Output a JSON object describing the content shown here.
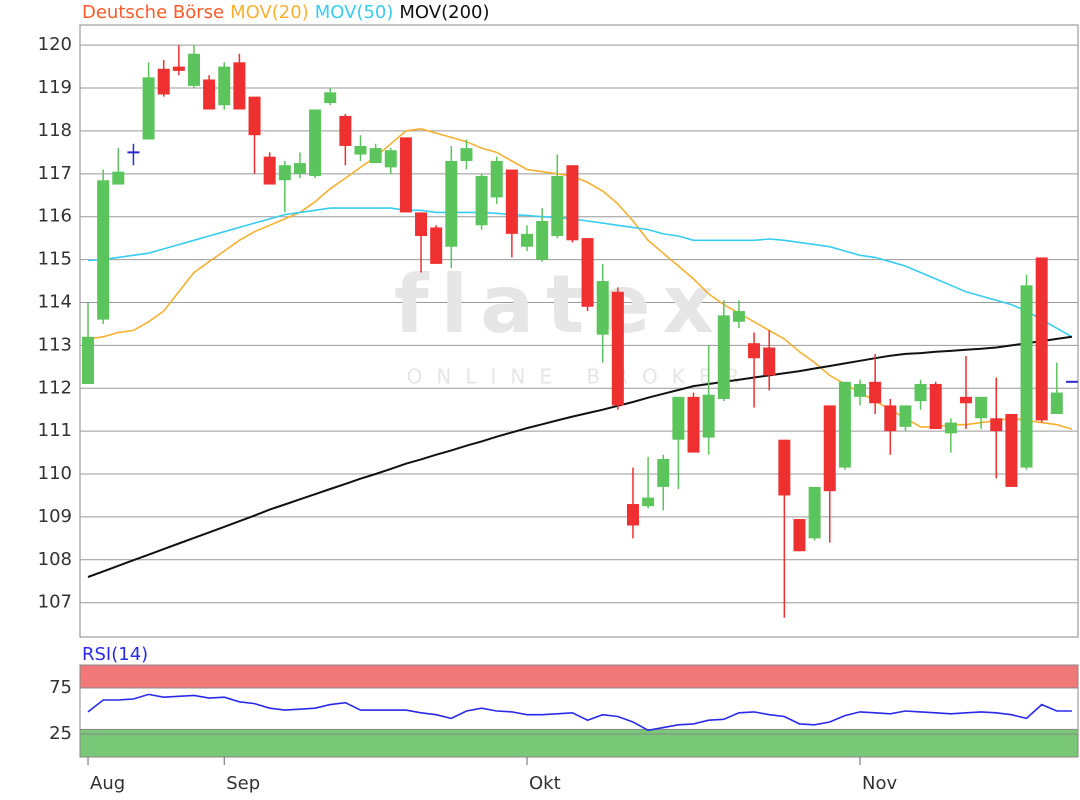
{
  "chart_data": [
    {
      "type": "candlestick",
      "watermark": {
        "logo": "flatex",
        "subtitle": "ONLINE BROKER"
      },
      "candles": {
        "name": "Deutsche Börse",
        "color": "#ff5a2a",
        "up_color": "#5cc45c",
        "down_color": "#ee3030",
        "doji_color": "#2a2ad0",
        "open": [
          112.1,
          113.6,
          116.75,
          117.5,
          117.8,
          119.45,
          119.5,
          119.05,
          119.2,
          118.6,
          119.6,
          118.8,
          117.4,
          116.85,
          117.0,
          116.95,
          118.65,
          118.35,
          117.45,
          117.25,
          117.15,
          117.85,
          116.1,
          115.75,
          115.3,
          117.3,
          115.8,
          116.45,
          117.1,
          115.3,
          115.0,
          115.55,
          117.2,
          115.5,
          113.25,
          114.25,
          109.3,
          109.25,
          109.7,
          110.8,
          111.8,
          110.85,
          111.75,
          113.55,
          113.05,
          112.95,
          110.8,
          108.95,
          108.5,
          111.6,
          110.15,
          111.8,
          112.15,
          111.6,
          111.1,
          111.7,
          112.1,
          110.95,
          111.8,
          111.3,
          111.3,
          111.4,
          110.15,
          115.05,
          111.4,
          112.15
        ],
        "high": [
          114.0,
          117.1,
          117.6,
          117.7,
          119.6,
          119.65,
          120.0,
          120.0,
          119.3,
          119.6,
          119.8,
          118.8,
          117.5,
          117.3,
          117.5,
          118.5,
          119.0,
          118.4,
          117.9,
          117.7,
          117.6,
          117.85,
          116.1,
          115.8,
          117.65,
          117.8,
          117.0,
          117.4,
          117.1,
          115.8,
          116.2,
          117.45,
          117.2,
          115.5,
          114.9,
          114.35,
          110.15,
          110.4,
          110.45,
          111.8,
          111.9,
          113.0,
          114.05,
          114.05,
          113.3,
          113.35,
          110.8,
          108.95,
          109.7,
          111.6,
          112.15,
          112.2,
          112.8,
          111.75,
          111.6,
          112.2,
          112.15,
          111.3,
          112.75,
          111.8,
          112.25,
          111.4,
          114.65,
          115.05,
          112.6,
          112.15
        ],
        "low": [
          112.1,
          113.5,
          116.75,
          117.2,
          117.8,
          118.8,
          119.3,
          119.0,
          118.5,
          118.5,
          118.5,
          117.0,
          116.75,
          116.1,
          116.9,
          116.9,
          118.6,
          117.2,
          117.3,
          117.25,
          117.0,
          116.1,
          114.7,
          114.9,
          114.8,
          117.1,
          115.7,
          116.3,
          115.05,
          115.2,
          114.95,
          115.5,
          115.4,
          113.8,
          112.6,
          111.5,
          108.5,
          109.2,
          109.15,
          109.65,
          110.5,
          110.45,
          111.7,
          113.4,
          111.55,
          111.95,
          106.65,
          108.2,
          108.45,
          108.4,
          110.1,
          111.6,
          111.4,
          110.45,
          111.0,
          111.5,
          111.05,
          110.5,
          111.05,
          111.05,
          109.9,
          109.7,
          110.1,
          111.2,
          111.4,
          112.15
        ],
        "close": [
          113.2,
          116.85,
          117.05,
          117.5,
          119.25,
          118.85,
          119.4,
          119.8,
          118.5,
          119.5,
          118.5,
          117.9,
          116.75,
          117.2,
          117.25,
          118.5,
          118.9,
          117.65,
          117.65,
          117.6,
          117.55,
          116.1,
          115.55,
          114.9,
          117.3,
          117.6,
          116.95,
          117.3,
          115.6,
          115.6,
          115.9,
          116.95,
          115.45,
          113.9,
          114.5,
          111.6,
          108.8,
          109.45,
          110.35,
          111.8,
          110.5,
          111.85,
          113.7,
          113.8,
          112.7,
          112.3,
          109.5,
          108.2,
          109.7,
          109.6,
          112.15,
          112.1,
          111.65,
          111.0,
          111.6,
          112.1,
          111.05,
          111.2,
          111.65,
          111.8,
          111.0,
          109.7,
          114.4,
          111.25,
          111.9,
          112.15
        ]
      },
      "series": [
        {
          "name": "MOV(20)",
          "color": "#f7b030",
          "values": [
            113.15,
            113.2,
            113.3,
            113.35,
            113.55,
            113.8,
            114.25,
            114.7,
            114.95,
            115.2,
            115.45,
            115.65,
            115.8,
            115.95,
            116.1,
            116.35,
            116.65,
            116.9,
            117.15,
            117.4,
            117.7,
            118.0,
            118.05,
            117.95,
            117.85,
            117.75,
            117.6,
            117.5,
            117.3,
            117.1,
            117.05,
            117.0,
            116.95,
            116.8,
            116.6,
            116.3,
            115.9,
            115.45,
            115.15,
            114.85,
            114.55,
            114.2,
            113.95,
            113.75,
            113.55,
            113.35,
            113.15,
            112.85,
            112.6,
            112.3,
            112.1,
            111.9,
            111.7,
            111.5,
            111.3,
            111.1,
            111.1,
            111.15,
            111.15,
            111.2,
            111.25,
            111.3,
            111.25,
            111.2,
            111.15,
            111.05
          ]
        },
        {
          "name": "MOV(50)",
          "color": "#38ccf0",
          "values": [
            114.98,
            115.0,
            115.05,
            115.1,
            115.15,
            115.25,
            115.35,
            115.45,
            115.55,
            115.65,
            115.75,
            115.85,
            115.95,
            116.05,
            116.1,
            116.15,
            116.2,
            116.2,
            116.2,
            116.2,
            116.2,
            116.15,
            116.15,
            116.1,
            116.1,
            116.1,
            116.1,
            116.08,
            116.05,
            116.03,
            116.0,
            115.98,
            115.95,
            115.9,
            115.85,
            115.8,
            115.75,
            115.7,
            115.6,
            115.55,
            115.45,
            115.45,
            115.45,
            115.45,
            115.45,
            115.48,
            115.45,
            115.4,
            115.35,
            115.3,
            115.2,
            115.1,
            115.05,
            114.95,
            114.85,
            114.7,
            114.55,
            114.4,
            114.25,
            114.15,
            114.05,
            113.95,
            113.8,
            113.6,
            113.4,
            113.2
          ]
        },
        {
          "name": "MOV(200)",
          "color": "#111111",
          "values": [
            107.6,
            107.73,
            107.86,
            107.99,
            108.12,
            108.25,
            108.38,
            108.51,
            108.64,
            108.77,
            108.9,
            109.03,
            109.17,
            109.29,
            109.41,
            109.53,
            109.65,
            109.77,
            109.89,
            110.0,
            110.12,
            110.24,
            110.34,
            110.45,
            110.55,
            110.66,
            110.76,
            110.87,
            110.97,
            111.07,
            111.16,
            111.25,
            111.34,
            111.42,
            111.5,
            111.59,
            111.68,
            111.78,
            111.87,
            111.96,
            112.05,
            112.1,
            112.15,
            112.2,
            112.25,
            112.3,
            112.35,
            112.4,
            112.46,
            112.52,
            112.58,
            112.64,
            112.7,
            112.76,
            112.8,
            112.82,
            112.85,
            112.87,
            112.9,
            112.92,
            112.95,
            113.0,
            113.05,
            113.1,
            113.15,
            113.2
          ]
        }
      ],
      "xlim": [
        -0.53,
        65.4
      ],
      "ylim": [
        106.2,
        120.47
      ],
      "yticks": [
        107,
        108,
        109,
        110,
        111,
        112,
        113,
        114,
        115,
        116,
        117,
        118,
        119,
        120
      ],
      "grid": true
    },
    {
      "type": "line",
      "series": [
        {
          "name": "RSI(14)",
          "color": "#2a2ae8",
          "values": [
            49,
            62,
            62,
            63,
            68,
            65,
            66,
            67,
            64,
            65,
            60,
            58,
            53,
            51,
            52,
            53,
            57,
            59,
            51,
            51,
            51,
            51,
            48,
            46,
            42,
            50,
            53,
            50,
            49,
            46,
            46,
            47,
            48,
            40,
            46,
            44,
            38,
            29,
            32,
            35,
            36,
            40,
            41,
            48,
            49,
            46,
            44,
            36,
            35,
            38,
            45,
            49,
            48,
            47,
            50,
            49,
            48,
            47,
            48,
            49,
            48,
            46,
            42,
            57,
            50,
            50
          ]
        }
      ],
      "bands": [
        {
          "from": 75,
          "to": 100,
          "color": "#f07878"
        },
        {
          "from": 0,
          "to": 30,
          "color": "#78c878"
        }
      ],
      "xlim": [
        -0.53,
        65.4
      ],
      "ylim": [
        0,
        100
      ],
      "yticks": [
        25,
        75
      ],
      "grid": true,
      "xticks": [
        {
          "value": 0,
          "label": "Aug"
        },
        {
          "value": 9,
          "label": "Sep"
        },
        {
          "value": 29,
          "label": "Okt"
        },
        {
          "value": 51,
          "label": "Nov"
        }
      ]
    }
  ]
}
